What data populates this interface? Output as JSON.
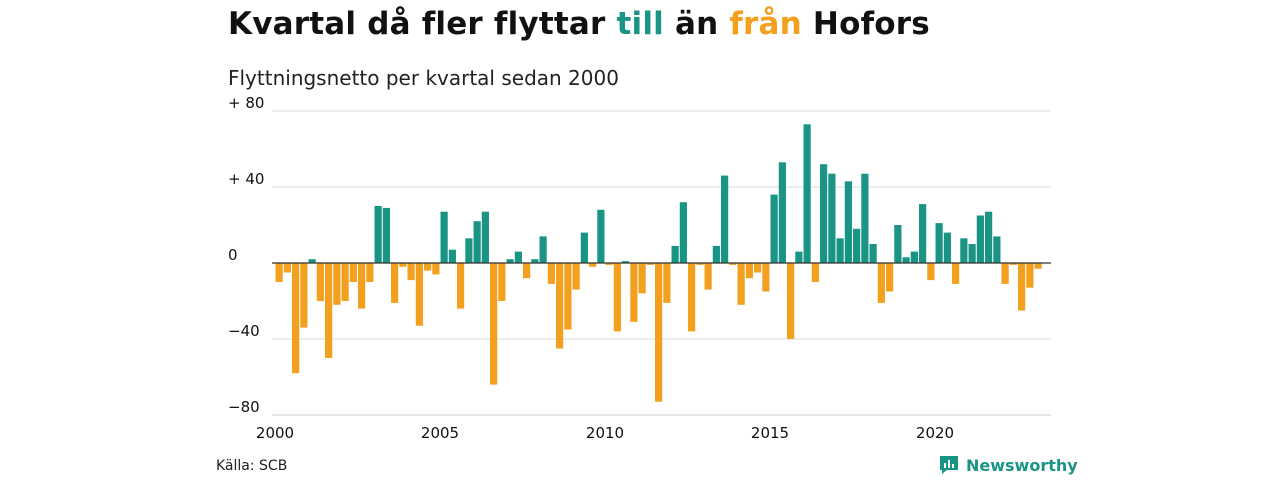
{
  "header": {
    "title_part1": "Kvartal då fler flyttar ",
    "title_till": "till",
    "title_part2": " än ",
    "title_fran": "från",
    "title_part3": " Hofors",
    "subtitle": "Flyttningsnetto per kvartal sedan 2000"
  },
  "footer": {
    "source": "Källa: SCB",
    "brand": "Newsworthy"
  },
  "colors": {
    "positive": "#1a9585",
    "negative": "#f2a01e",
    "grid": "#dddddd",
    "zero_line": "#333333"
  },
  "chart_data": {
    "type": "bar",
    "ylim": [
      -80,
      80
    ],
    "y_ticks": [
      {
        "value": 80,
        "label": "+ 80"
      },
      {
        "value": 40,
        "label": "+ 40"
      },
      {
        "value": 0,
        "label": "0"
      },
      {
        "value": -40,
        "label": "−40"
      },
      {
        "value": -80,
        "label": "−80"
      }
    ],
    "x_ticks": [
      "2000",
      "2005",
      "2010",
      "2015",
      "2020"
    ],
    "x_start_year": 2000,
    "grid": true,
    "values": [
      -10,
      -5,
      -58,
      -34,
      2,
      -20,
      -50,
      -22,
      -20,
      -10,
      -24,
      -10,
      30,
      29,
      -21,
      -2,
      -9,
      -33,
      -4,
      -6,
      27,
      7,
      -24,
      13,
      22,
      27,
      -64,
      -20,
      2,
      6,
      -8,
      2,
      14,
      -11,
      -45,
      -35,
      -14,
      16,
      -2,
      28,
      -1,
      -36,
      1,
      -31,
      -16,
      -1,
      -73,
      -21,
      9,
      32,
      -36,
      -1,
      -14,
      9,
      46,
      -1,
      -22,
      -8,
      -5,
      -15,
      36,
      53,
      -40,
      6,
      73,
      -10,
      52,
      47,
      13,
      43,
      18,
      47,
      10,
      -21,
      -15,
      20,
      3,
      6,
      31,
      -9,
      21,
      16,
      -11,
      13,
      10,
      25,
      27,
      14,
      -11,
      -1,
      -25,
      -13,
      -3
    ]
  }
}
